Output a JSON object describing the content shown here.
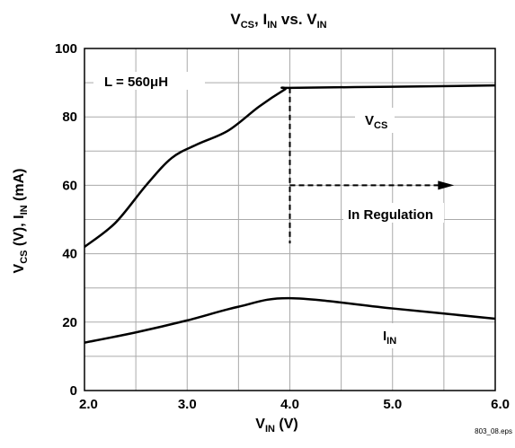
{
  "chart_data": {
    "type": "line",
    "title": {
      "p1": "V",
      "p1_sub": "CS",
      "p2": ", I",
      "p2_sub": "IN",
      "p3": " vs. V",
      "p3_sub": "IN"
    },
    "xlabel": {
      "main": "V",
      "sub": "IN",
      "tail": " (V)"
    },
    "ylabel": {
      "a": "V",
      "a_sub": "CS",
      "b": " (V), I",
      "b_sub": "IN",
      "c": " (mA)"
    },
    "xlim": [
      2.0,
      6.0
    ],
    "ylim": [
      0,
      100
    ],
    "xticks": [
      "2.0",
      "3.0",
      "4.0",
      "5.0",
      "6.0"
    ],
    "xtick_values": [
      2,
      3,
      4,
      5,
      6
    ],
    "yticks": [
      "0",
      "20",
      "40",
      "60",
      "80",
      "100"
    ],
    "ytick_values": [
      0,
      20,
      40,
      60,
      80,
      100
    ],
    "grid": true,
    "series": [
      {
        "name": "VCS",
        "color": "#000000",
        "x": [
          2.0,
          2.3,
          2.6,
          2.85,
          3.1,
          3.4,
          3.7,
          3.95,
          4.0,
          5.0,
          6.0
        ],
        "y": [
          42,
          49,
          60,
          68,
          72,
          76,
          83,
          88,
          88.5,
          88.8,
          89.2
        ]
      },
      {
        "name": "IIN",
        "color": "#000000",
        "x": [
          2.0,
          2.5,
          3.0,
          3.5,
          4.0,
          5.0,
          6.0
        ],
        "y": [
          14,
          17,
          20.5,
          24.5,
          27,
          24,
          21
        ]
      }
    ],
    "annotations": {
      "inductor": "L = 560μH",
      "vcs_label": {
        "main": "V",
        "sub": "CS"
      },
      "iin_label": {
        "main": "I",
        "sub": "IN"
      },
      "regulation": "In Regulation",
      "regulation_x": 4.0,
      "regulation_y": [
        43,
        88.5
      ],
      "arrow_y": 60,
      "arrow_to_x": 5.6
    },
    "footnote": "803_08.eps"
  }
}
